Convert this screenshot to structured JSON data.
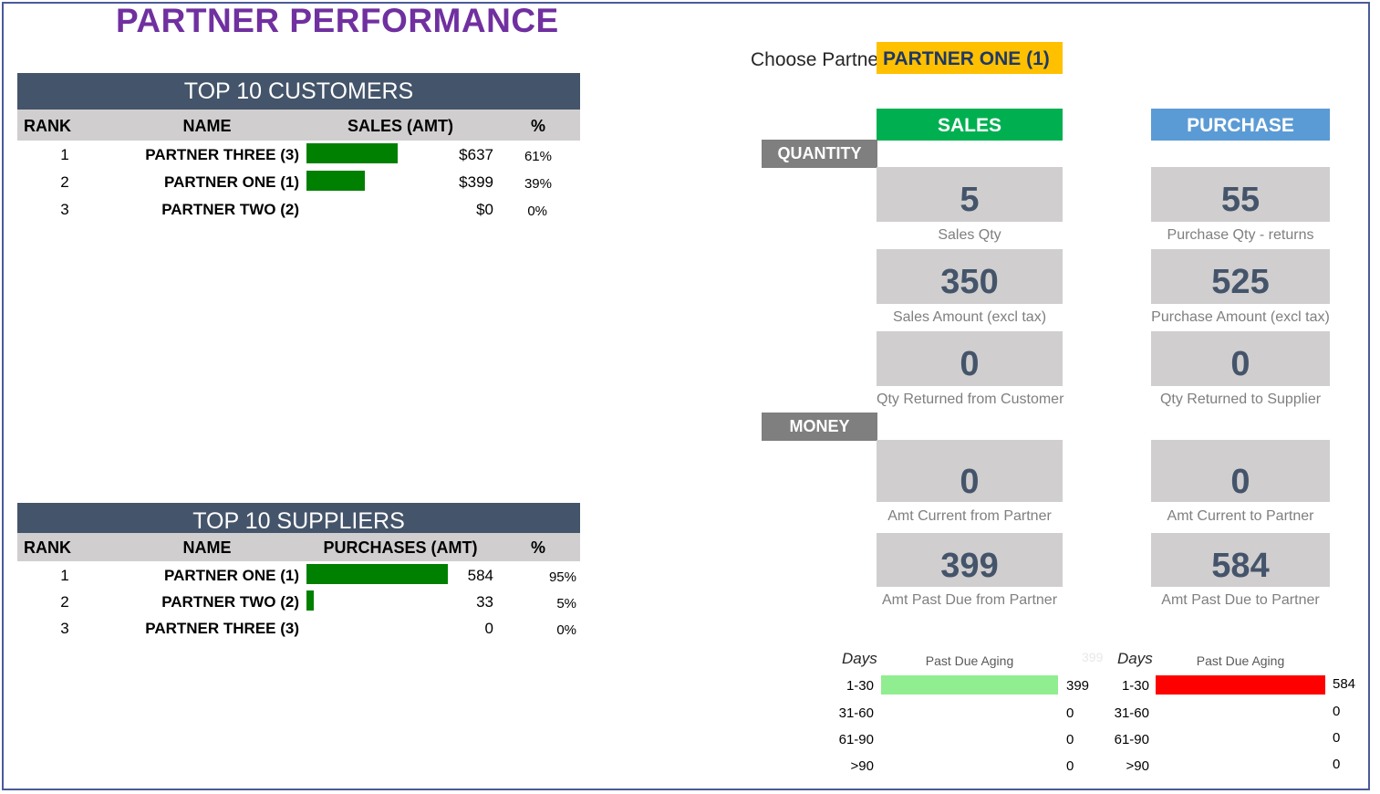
{
  "title": "PARTNER PERFORMANCE",
  "choose": {
    "label": "Choose Partner",
    "value": "PARTNER ONE (1)"
  },
  "customers": {
    "title": "TOP 10 CUSTOMERS",
    "headers": {
      "rank": "RANK",
      "name": "NAME",
      "amount": "SALES (AMT)",
      "pct": "%"
    },
    "rows": [
      {
        "rank": "1",
        "name": "PARTNER THREE (3)",
        "amount": "$637",
        "pct": "61%",
        "share": 0.61
      },
      {
        "rank": "2",
        "name": "PARTNER ONE (1)",
        "amount": "$399",
        "pct": "39%",
        "share": 0.39
      },
      {
        "rank": "3",
        "name": "PARTNER TWO (2)",
        "amount": "$0",
        "pct": "0%",
        "share": 0
      }
    ]
  },
  "suppliers": {
    "title": "TOP 10 SUPPLIERS",
    "headers": {
      "rank": "RANK",
      "name": "NAME",
      "amount": "PURCHASES (AMT)",
      "pct": "%"
    },
    "rows": [
      {
        "rank": "1",
        "name": "PARTNER ONE (1)",
        "amount": "584",
        "pct": "95%",
        "share": 0.95
      },
      {
        "rank": "2",
        "name": "PARTNER TWO (2)",
        "amount": "33",
        "pct": "5%",
        "share": 0.05
      },
      {
        "rank": "3",
        "name": "PARTNER THREE (3)",
        "amount": "0",
        "pct": "0%",
        "share": 0
      }
    ]
  },
  "columns": {
    "sales": "SALES",
    "purchase": "PURCHASE"
  },
  "sections": {
    "quantity": "QUANTITY",
    "money": "MONEY"
  },
  "sales_metrics": [
    {
      "value": "5",
      "label": "Sales Qty"
    },
    {
      "value": "350",
      "label": "Sales Amount (excl tax)"
    },
    {
      "value": "0",
      "label": "Qty Returned from Customer"
    },
    {
      "value": "0",
      "label": "Amt Current from Partner"
    },
    {
      "value": "399",
      "label": "Amt Past Due from Partner"
    }
  ],
  "purchase_metrics": [
    {
      "value": "55",
      "label": "Purchase Qty - returns"
    },
    {
      "value": "525",
      "label": "Purchase Amount (excl tax)"
    },
    {
      "value": "0",
      "label": "Qty Returned to Supplier"
    },
    {
      "value": "0",
      "label": "Amt Current to Partner"
    },
    {
      "value": "584",
      "label": "Amt Past Due to Partner"
    }
  ],
  "aging": {
    "days_label": "Days",
    "title": "Past Due Aging",
    "buckets": [
      "1-30",
      "31-60",
      "61-90",
      ">90"
    ],
    "sales_ghost_max": "399",
    "sales": {
      "values": [
        "399",
        "0",
        "0",
        "0"
      ],
      "fill": [
        1,
        0,
        0,
        0
      ],
      "color": "#90ee90"
    },
    "purchase": {
      "values": [
        "584",
        "0",
        "0",
        "0"
      ],
      "fill": [
        1,
        0,
        0,
        0
      ],
      "color": "#ff0000"
    }
  },
  "colors": {
    "title": "#7030a0",
    "banner": "#44546a",
    "bar": "#008000",
    "sales_head": "#00b050",
    "purchase_head": "#5b9bd5",
    "choose": "#ffc000"
  }
}
